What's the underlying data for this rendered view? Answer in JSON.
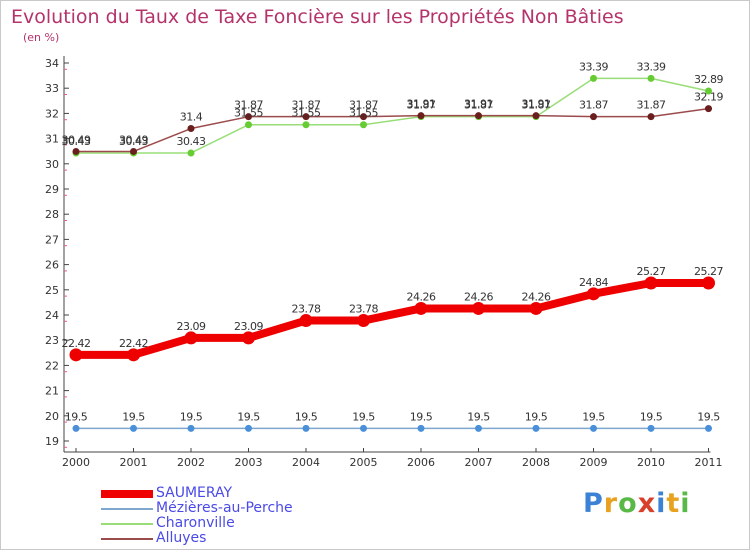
{
  "header": {
    "title": "Evolution du Taux de Taxe Foncière sur les Propriétés Non Bâties",
    "unit": "(en %)"
  },
  "brand": {
    "text": "Proxiti",
    "colors": [
      "#3b82d6",
      "#e8a21f",
      "#58b947",
      "#d8402c",
      "#3b82d6",
      "#e8a21f",
      "#58b947"
    ]
  },
  "chart_data": {
    "type": "line",
    "title": "Evolution du Taux de Taxe Foncière sur les Propriétés Non Bâties",
    "ylabel": "(en %)",
    "xlabel": "",
    "x": [
      "2000",
      "2001",
      "2002",
      "2003",
      "2004",
      "2005",
      "2006",
      "2007",
      "2008",
      "2009",
      "2010",
      "2011"
    ],
    "ylim": [
      19,
      34
    ],
    "yticks": [
      "19",
      "20",
      "21",
      "22",
      "23",
      "24",
      "25",
      "26",
      "27",
      "28",
      "29",
      "30",
      "31",
      "32",
      "33",
      "34"
    ],
    "grid": false,
    "legend_position": "bottom-left",
    "series": [
      {
        "name": "SAUMERAY",
        "color": "#ee0000",
        "width": 8,
        "marker": 6.5,
        "values": [
          22.42,
          22.42,
          23.09,
          23.09,
          23.78,
          23.78,
          24.26,
          24.26,
          24.26,
          24.84,
          25.27,
          25.27
        ],
        "labels": [
          "22.42",
          "22.42",
          "23.09",
          "23.09",
          "23.78",
          "23.78",
          "24.26",
          "24.26",
          "24.26",
          "24.84",
          "25.27",
          "25.27"
        ]
      },
      {
        "name": "Mézières-au-Perche",
        "color": "#7fa6cc",
        "marker_color": "#4a90d9",
        "width": 1.5,
        "marker": 3.5,
        "values": [
          19.5,
          19.5,
          19.5,
          19.5,
          19.5,
          19.5,
          19.5,
          19.5,
          19.5,
          19.5,
          19.5,
          19.5
        ],
        "labels": [
          "19.5",
          "19.5",
          "19.5",
          "19.5",
          "19.5",
          "19.5",
          "19.5",
          "19.5",
          "19.5",
          "19.5",
          "19.5",
          "19.5"
        ]
      },
      {
        "name": "Charonville",
        "color": "#99dd77",
        "marker_color": "#66cc33",
        "width": 1.5,
        "marker": 3.5,
        "values": [
          30.43,
          30.43,
          30.43,
          31.55,
          31.55,
          31.55,
          31.87,
          31.87,
          31.87,
          33.39,
          33.39,
          32.89
        ],
        "labels": [
          "30.43",
          "30.43",
          "30.43",
          "31.55",
          "31.55",
          "31.55",
          "31.87",
          "31.87",
          "31.87",
          "33.39",
          "33.39",
          "32.89"
        ]
      },
      {
        "name": "Alluyes",
        "color": "#9b4b4b",
        "marker_color": "#6b1e1e",
        "width": 1.5,
        "marker": 3.5,
        "values": [
          30.49,
          30.49,
          31.4,
          31.87,
          31.87,
          31.87,
          31.91,
          31.91,
          31.91,
          31.87,
          31.87,
          32.19
        ],
        "labels": [
          "30.49",
          "30.49",
          "31.4",
          "31.87",
          "31.87",
          "31.87",
          "31.91",
          "31.91",
          "31.91",
          "31.87",
          "31.87",
          "32.19"
        ]
      }
    ]
  }
}
